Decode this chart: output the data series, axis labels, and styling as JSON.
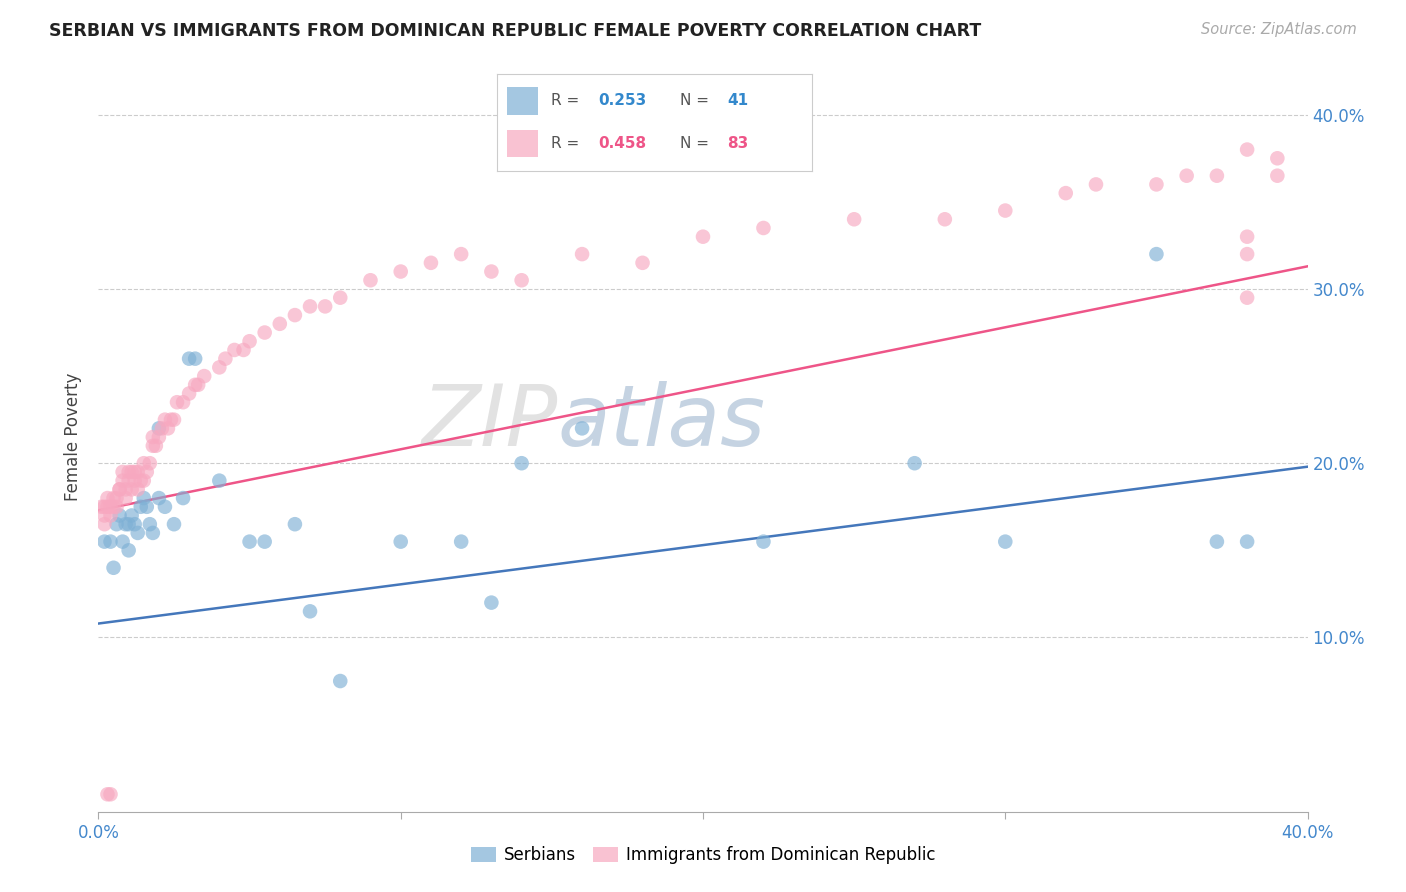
{
  "title": "SERBIAN VS IMMIGRANTS FROM DOMINICAN REPUBLIC FEMALE POVERTY CORRELATION CHART",
  "source": "Source: ZipAtlas.com",
  "ylabel": "Female Poverty",
  "xlim": [
    0.0,
    0.4
  ],
  "ylim": [
    0.0,
    0.43
  ],
  "legend_r1": "R = 0.253",
  "legend_n1": "N = 41",
  "legend_r2": "R = 0.458",
  "legend_n2": "N = 83",
  "blue_color": "#7EB0D5",
  "pink_color": "#F7A8C0",
  "blue_line_color": "#4477BB",
  "pink_line_color": "#EE5588",
  "watermark_zip": "ZIP",
  "watermark_atlas": "atlas",
  "serbian_x": [
    0.002,
    0.004,
    0.005,
    0.006,
    0.007,
    0.008,
    0.009,
    0.01,
    0.01,
    0.011,
    0.012,
    0.013,
    0.014,
    0.015,
    0.016,
    0.017,
    0.018,
    0.02,
    0.02,
    0.022,
    0.025,
    0.028,
    0.03,
    0.032,
    0.04,
    0.05,
    0.055,
    0.065,
    0.07,
    0.08,
    0.1,
    0.12,
    0.13,
    0.14,
    0.16,
    0.22,
    0.27,
    0.3,
    0.35,
    0.37,
    0.38
  ],
  "serbian_y": [
    0.155,
    0.155,
    0.14,
    0.165,
    0.17,
    0.155,
    0.165,
    0.15,
    0.165,
    0.17,
    0.165,
    0.16,
    0.175,
    0.18,
    0.175,
    0.165,
    0.16,
    0.22,
    0.18,
    0.175,
    0.165,
    0.18,
    0.26,
    0.26,
    0.19,
    0.155,
    0.155,
    0.165,
    0.115,
    0.075,
    0.155,
    0.155,
    0.12,
    0.2,
    0.22,
    0.155,
    0.2,
    0.155,
    0.32,
    0.155,
    0.155
  ],
  "dominican_x": [
    0.001,
    0.002,
    0.002,
    0.003,
    0.003,
    0.004,
    0.004,
    0.005,
    0.005,
    0.006,
    0.006,
    0.007,
    0.007,
    0.008,
    0.008,
    0.009,
    0.009,
    0.01,
    0.01,
    0.011,
    0.011,
    0.012,
    0.012,
    0.013,
    0.013,
    0.014,
    0.015,
    0.015,
    0.016,
    0.017,
    0.018,
    0.018,
    0.019,
    0.02,
    0.021,
    0.022,
    0.023,
    0.024,
    0.025,
    0.026,
    0.028,
    0.03,
    0.032,
    0.033,
    0.035,
    0.04,
    0.042,
    0.045,
    0.048,
    0.05,
    0.055,
    0.06,
    0.065,
    0.07,
    0.075,
    0.08,
    0.09,
    0.1,
    0.11,
    0.12,
    0.13,
    0.14,
    0.16,
    0.18,
    0.2,
    0.22,
    0.25,
    0.28,
    0.3,
    0.32,
    0.33,
    0.35,
    0.36,
    0.37,
    0.38,
    0.38,
    0.38,
    0.39,
    0.39,
    0.002,
    0.003,
    0.004,
    0.38
  ],
  "dominican_y": [
    0.175,
    0.17,
    0.175,
    0.175,
    0.18,
    0.17,
    0.175,
    0.175,
    0.18,
    0.175,
    0.18,
    0.185,
    0.185,
    0.19,
    0.195,
    0.18,
    0.185,
    0.195,
    0.19,
    0.195,
    0.185,
    0.195,
    0.19,
    0.195,
    0.185,
    0.19,
    0.2,
    0.19,
    0.195,
    0.2,
    0.21,
    0.215,
    0.21,
    0.215,
    0.22,
    0.225,
    0.22,
    0.225,
    0.225,
    0.235,
    0.235,
    0.24,
    0.245,
    0.245,
    0.25,
    0.255,
    0.26,
    0.265,
    0.265,
    0.27,
    0.275,
    0.28,
    0.285,
    0.29,
    0.29,
    0.295,
    0.305,
    0.31,
    0.315,
    0.32,
    0.31,
    0.305,
    0.32,
    0.315,
    0.33,
    0.335,
    0.34,
    0.34,
    0.345,
    0.355,
    0.36,
    0.36,
    0.365,
    0.365,
    0.295,
    0.33,
    0.32,
    0.365,
    0.375,
    0.165,
    0.01,
    0.01,
    0.38
  ]
}
